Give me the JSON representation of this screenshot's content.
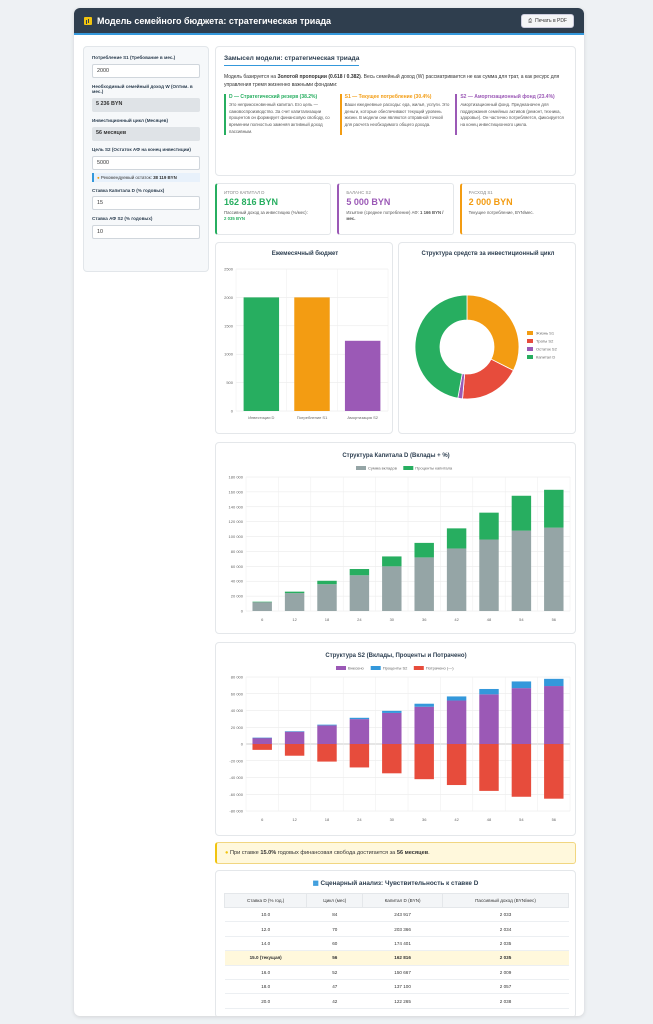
{
  "header": {
    "title": "Модель семейного бюджета: стратегическая триада",
    "pdf_button": "Печать в PDF"
  },
  "sidebar": {
    "s1_label": "Потребление S1 (Требование в мес.)",
    "s1_value": "2000",
    "w_label": "Необходимый семейный доход W (Оптим. в мес.)",
    "w_value": "5 236 BYN",
    "cycle_label": "Инвестиционный цикл (Месяцев)",
    "cycle_value": "56 месяцев",
    "s2_label": "Цель S2 (Остаток АФ на конец инвестиции)",
    "s2_value": "5000",
    "hint_text": "Рекомендуемый остаток:",
    "hint_value": "38 119 BYN",
    "rate_d_label": "Ставка Капитала D (% годовых)",
    "rate_d_value": "15",
    "rate_af_label": "Ставка АФ S2 (% годовых)",
    "rate_af_value": "10"
  },
  "concept": {
    "title": "Замысел модели: стратегическая триада",
    "intro_a": "Модель базируется на ",
    "intro_b": "Золотой пропорции (0.618 / 0.382)",
    "intro_c": ". Весь семейный доход (W) рассматривается не как сумма для трат, а как ресурс для управления тремя жизненно важными фондами:",
    "col1_title": "D — Стратегический резерв (38.2%)",
    "col1_text": "Это неприкосновенный капитал. Его цель — самовоспроизводство. За счет капитализации процентов он формирует финансовую свободу, со временем полностью заменяя активный доход пассивным.",
    "col2_title": "S1 — Текущее потребление (30.4%)",
    "col2_text": "Ваши ежедневные расходы: еда, жильё, услуги. Это деньги, которые обеспечивают текущий уровень жизни. В модели они являются отправной точкой для расчета необходимого общего дохода.",
    "col3_title": "S2 — Амортизационный фонд (23.4%)",
    "col3_text": "Амортизационный фонд. Предназначен для поддержания семейных активов (ремонт, техника, здоровье). Он частично потребляется, фиксируется на конец инвестиционного цикла."
  },
  "kpis": [
    {
      "label": "Итого капитал D",
      "value": "162 816 BYN",
      "sub": "Пассивный доход за инвестицию (%/мес):",
      "sub2": "2 035 BYN"
    },
    {
      "label": "Баланс S2",
      "value": "5 000 BYN",
      "sub": "Изъятие (среднее потребление) АФ:",
      "sub2": "1 166 BYN /мес."
    },
    {
      "label": "Расход S1",
      "value": "2 000 BYN",
      "sub": "Текущее потребление, BYN/мес.",
      "sub2": ""
    }
  ],
  "colors": {
    "green": "#27ae60",
    "orange": "#f39c12",
    "purple": "#9b59b6",
    "red": "#e74c3c",
    "gray": "#95a5a6",
    "blue": "#3498db"
  },
  "chart_data": [
    {
      "type": "bar",
      "title": "Ежемесячный бюджет",
      "categories": [
        "Инвестиции D",
        "Потребление S1",
        "Амортизация S2"
      ],
      "values": [
        2000,
        2000,
        1236
      ],
      "yticks": [
        0,
        500,
        1000,
        1500,
        2000,
        2500
      ],
      "ylim": [
        0,
        2500
      ],
      "grid": true
    },
    {
      "type": "pie",
      "title": "Структура средств за инвестиционный цикл",
      "labels": [
        "Жизнь S1",
        "Траты S2",
        "Остаток S2",
        "Капитал D"
      ],
      "values": [
        112000,
        65296,
        5000,
        162816
      ],
      "legend": "right"
    },
    {
      "type": "bar",
      "stacked": true,
      "title": "Структура Капитала D (Вклады + %)",
      "categories": [
        "6",
        "12",
        "18",
        "24",
        "30",
        "36",
        "42",
        "48",
        "54",
        "56"
      ],
      "series": [
        {
          "name": "Сумма вкладов",
          "values": [
            12000,
            24000,
            36000,
            48000,
            60000,
            72000,
            84000,
            96000,
            108000,
            112000
          ]
        },
        {
          "name": "Проценты капитала",
          "values": [
            500,
            2000,
            4600,
            8400,
            13300,
            19500,
            27000,
            36100,
            46800,
            50816
          ]
        }
      ],
      "yticks": [
        0,
        20000,
        40000,
        60000,
        80000,
        100000,
        120000,
        140000,
        160000,
        180000
      ],
      "ytick_labels": [
        "0",
        "20 000",
        "40 000",
        "60 000",
        "80 000",
        "100 000",
        "120 000",
        "140 000",
        "160 000",
        "180 000"
      ],
      "ylim": [
        0,
        180000
      ],
      "legend": "top"
    },
    {
      "type": "bar",
      "stacked": true,
      "title": "Структура S2 (Вклады, Проценты и Потрачено)",
      "categories": [
        "6",
        "12",
        "18",
        "24",
        "30",
        "36",
        "42",
        "48",
        "54",
        "56"
      ],
      "series": [
        {
          "name": "Внесено",
          "values": [
            7400,
            14800,
            22200,
            29700,
            37100,
            44500,
            51900,
            59300,
            66700,
            69200
          ]
        },
        {
          "name": "Проценты S2",
          "values": [
            100,
            400,
            900,
            1600,
            2500,
            3600,
            4900,
            6400,
            8000,
            8600
          ]
        },
        {
          "name": "Потрачено (—)",
          "values": [
            -7000,
            -14000,
            -21000,
            -28000,
            -35000,
            -42000,
            -49000,
            -56000,
            -63000,
            -65300
          ]
        }
      ],
      "yticks": [
        -80000,
        -60000,
        -40000,
        -20000,
        0,
        20000,
        40000,
        60000,
        80000
      ],
      "ytick_labels": [
        "-80 000",
        "-60 000",
        "-40 000",
        "-20 000",
        "0",
        "20 000",
        "40 000",
        "60 000",
        "80 000"
      ],
      "ylim": [
        -80000,
        80000
      ],
      "legend": "top"
    }
  ],
  "alert": {
    "a": "При ставке ",
    "b": "15.0%",
    "c": " годовых финансовая свобода достигается за ",
    "d": "56 месяцев",
    "e": "."
  },
  "table": {
    "title": "Сценарный анализ: Чувствительность к ставке D",
    "headers": [
      "Ставка D (% год.)",
      "Цикл (мес)",
      "Капитал D (BYN)",
      "Пассивный доход (BYN/мес)"
    ],
    "rows": [
      [
        "10.0",
        "84",
        "243 917",
        "2 033"
      ],
      [
        "12.0",
        "70",
        "203 366",
        "2 034"
      ],
      [
        "14.0",
        "60",
        "174 401",
        "2 035"
      ],
      [
        "15.0 (текущая)",
        "56",
        "162 816",
        "2 035"
      ],
      [
        "16.0",
        "52",
        "150 667",
        "2 009"
      ],
      [
        "18.0",
        "47",
        "137 100",
        "2 057"
      ],
      [
        "20.0",
        "42",
        "122 265",
        "2 038"
      ]
    ]
  }
}
